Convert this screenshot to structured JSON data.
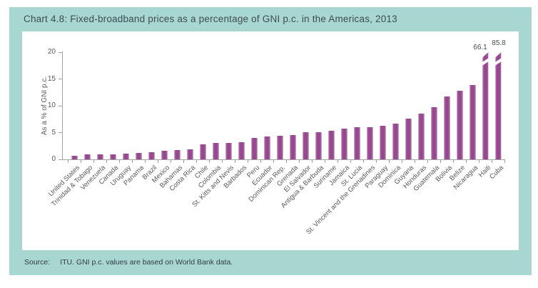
{
  "header": {
    "title": "Chart 4.8: Fixed-broadband prices as a percentage of GNI p.c. in the Americas, 2013"
  },
  "source": {
    "label": "Source:",
    "text": "ITU. GNI p.c. values are based on World Bank data."
  },
  "colors": {
    "frame_teal": "#a8d6d1",
    "panel_white": "#ffffff",
    "bar_purple": "#96478f",
    "bar_edge_light": "#c79fc2",
    "axis_gray": "#a3a3a3",
    "tick_text_gray": "#595959",
    "title_text": "#3e4d50"
  },
  "chart_data": {
    "type": "bar",
    "title": "Chart 4.8: Fixed-broadband prices as a percentage of GNI p.c. in the Americas, 2013",
    "xlabel": "",
    "ylabel": "As a % of GNI p.c.",
    "ylim": [
      0,
      20
    ],
    "yticks": [
      "0",
      "5",
      "10",
      "15",
      "20"
    ],
    "grid": false,
    "legend": "none",
    "categories": [
      "United States",
      "Trinidad & Tobago",
      "Venezuela",
      "Canada",
      "Uruguay",
      "Panama",
      "Brazil",
      "Mexico",
      "Bahamas",
      "Costa Rica",
      "Chile",
      "Colombia",
      "St. Kitts and Nevis",
      "Barbados",
      "Peru",
      "Ecuador",
      "Dominican Rep.",
      "Grenada",
      "El Salvador",
      "Antigua & Barbuda",
      "Suriname",
      "Jamaica",
      "St. Lucia",
      "St. Vincent and the Grenadines",
      "Paraguay",
      "Dominica",
      "Guyana",
      "Honduras",
      "Guatemala",
      "Bolivia",
      "Belize",
      "Nicaragua",
      "Haiti",
      "Cuba"
    ],
    "values": [
      0.6,
      0.9,
      0.9,
      0.9,
      1.0,
      1.2,
      1.3,
      1.6,
      1.7,
      1.9,
      2.8,
      3.0,
      3.1,
      3.2,
      4.0,
      4.2,
      4.4,
      4.5,
      5.0,
      5.1,
      5.3,
      5.7,
      6.0,
      6.0,
      6.2,
      6.7,
      7.6,
      8.5,
      9.7,
      11.7,
      12.8,
      13.9,
      66.1,
      85.8
    ],
    "broken_bars": [
      {
        "category": "Haiti",
        "value": 66.1,
        "label": "66.1"
      },
      {
        "category": "Cuba",
        "value": 85.8,
        "label": "85.8"
      }
    ],
    "note": "Bars for Haiti and Cuba exceed the axis maximum and are shown clipped with a break mark and data labels."
  }
}
